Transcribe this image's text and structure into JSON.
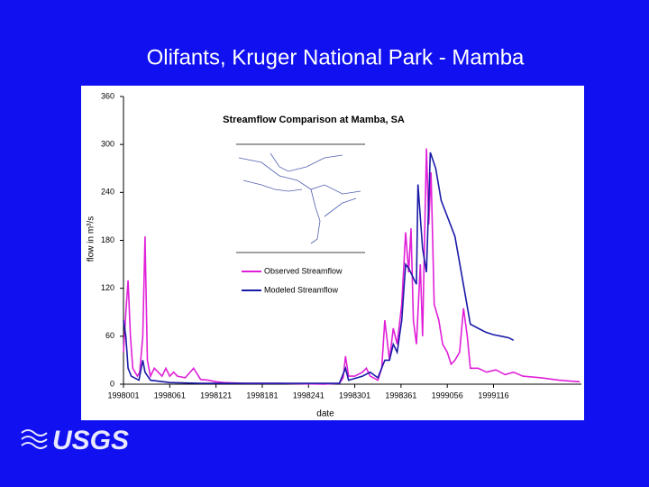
{
  "slide_title": "Olifants, Kruger National Park - Mamba",
  "logo": "USGS",
  "chart_data": {
    "type": "line",
    "title": "Streamflow Comparison at Mamba, SA",
    "x_label": "date",
    "y_label": "flow in m³/s",
    "xlim": [
      0,
      594
    ],
    "ylim": [
      0,
      360
    ],
    "xticks": [
      {
        "value": 0,
        "label": "1998001"
      },
      {
        "value": 60,
        "label": "1998061"
      },
      {
        "value": 120,
        "label": "1998121"
      },
      {
        "value": 180,
        "label": "1998181"
      },
      {
        "value": 240,
        "label": "1998241"
      },
      {
        "value": 300,
        "label": "1998301"
      },
      {
        "value": 360,
        "label": "1998361"
      },
      {
        "value": 420,
        "label": "1999056"
      },
      {
        "value": 480,
        "label": "1999116"
      }
    ],
    "yticks": [
      0,
      60,
      120,
      180,
      240,
      300,
      360
    ],
    "legend": "inside",
    "series": [
      {
        "name": "Observed Streamflow",
        "color": "#e020d8",
        "x": [
          0,
          3,
          6,
          9,
          12,
          15,
          18,
          21,
          25,
          28,
          31,
          35,
          40,
          45,
          50,
          55,
          60,
          65,
          70,
          80,
          91,
          100,
          110,
          120,
          130,
          160,
          200,
          260,
          280,
          285,
          288,
          292,
          300,
          310,
          315,
          320,
          330,
          335,
          339,
          345,
          350,
          355,
          361,
          366,
          370,
          373,
          376,
          380,
          385,
          388,
          393,
          396,
          399,
          403,
          409,
          414,
          420,
          425,
          430,
          436,
          441,
          446,
          450,
          460,
          471,
          483,
          495,
          506,
          518,
          542,
          565,
          592
        ],
        "values": [
          40,
          90,
          130,
          60,
          20,
          15,
          10,
          15,
          60,
          185,
          30,
          10,
          20,
          15,
          10,
          20,
          10,
          15,
          10,
          8,
          20,
          6,
          5,
          3,
          2,
          1,
          1,
          0,
          1,
          8,
          35,
          10,
          10,
          15,
          20,
          10,
          5,
          20,
          80,
          30,
          70,
          50,
          100,
          190,
          140,
          195,
          80,
          50,
          150,
          60,
          295,
          200,
          265,
          100,
          80,
          50,
          40,
          25,
          30,
          40,
          95,
          60,
          20,
          20,
          15,
          18,
          12,
          15,
          10,
          8,
          5,
          3
        ]
      },
      {
        "name": "Modeled Streamflow",
        "color": "#1a1aa8",
        "x": [
          0,
          3,
          6,
          10,
          20,
          25,
          28,
          35,
          60,
          100,
          280,
          288,
          292,
          310,
          320,
          330,
          339,
          345,
          350,
          355,
          361,
          366,
          370,
          375,
          380,
          382,
          388,
          393,
          398,
          405,
          412,
          420,
          430,
          440,
          450,
          460,
          470,
          480,
          490,
          500,
          506
        ],
        "values": [
          80,
          60,
          20,
          10,
          5,
          30,
          15,
          5,
          2,
          1,
          1,
          20,
          5,
          10,
          15,
          8,
          30,
          30,
          50,
          40,
          80,
          150,
          145,
          135,
          125,
          250,
          170,
          140,
          290,
          270,
          230,
          210,
          185,
          130,
          75,
          70,
          65,
          62,
          60,
          58,
          55
        ]
      }
    ]
  }
}
